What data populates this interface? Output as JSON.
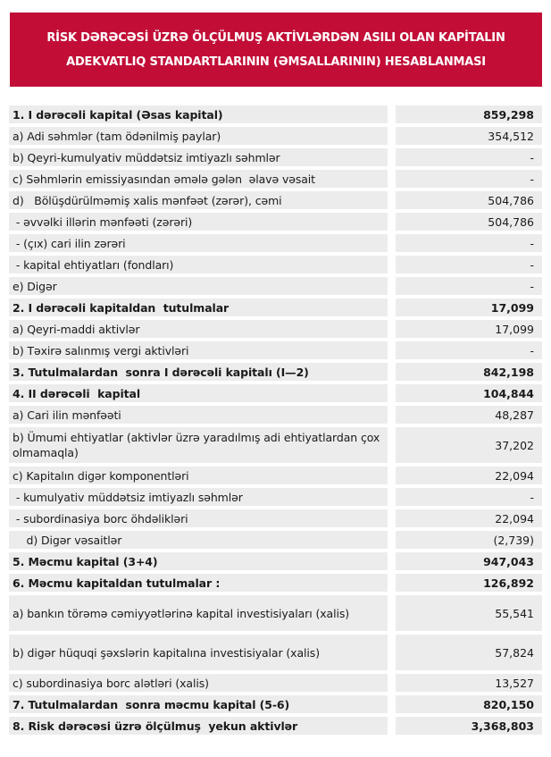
{
  "header": {
    "title_line1": "RİSK DƏRƏCƏSİ ÜZRƏ ÖLÇÜLMUŞ AKTİVLƏRDƏN ASILI OLAN KAPİTALIN",
    "title_line2": "ADEKVATLIQ STANDARTLARININ (ƏMSALLARININ) HESABLANMASI",
    "background_color": "#c20e37",
    "text_color": "#ffffff"
  },
  "table": {
    "row_background": "#ececec",
    "text_color": "#1a1a1a",
    "rows": [
      {
        "label": "1. I dərəcəli kapital (Əsas kapital)",
        "value": "859,298",
        "bold": true
      },
      {
        "label": "a) Adi səhmlər (tam ödənilmiş paylar)",
        "value": "354,512"
      },
      {
        "label": "b) Qeyri-kumulyativ müddətsiz imtiyazlı səhmlər",
        "value": "-"
      },
      {
        "label": "c) Səhmlərin emissiyasından əmələ gələn  əlavə vəsait",
        "value": "-"
      },
      {
        "label": "d)   Bölüşdürülməmiş xalis mənfəət (zərər), cəmi",
        "value": "504,786"
      },
      {
        "label": " - əvvəlki illərin mənfəəti (zərəri)",
        "value": "504,786"
      },
      {
        "label": " - (çıx) cari ilin zərəri",
        "value": "-"
      },
      {
        "label": " - kapital ehtiyatları (fondları)",
        "value": "-"
      },
      {
        "label": "e) Digər",
        "value": "-"
      },
      {
        "label": "2. I dərəcəli kapitaldan  tutulmalar",
        "value": "17,099",
        "bold": true
      },
      {
        "label": "a) Qeyri-maddi aktivlər",
        "value": "17,099"
      },
      {
        "label": "b) Təxirə salınmış vergi aktivləri",
        "value": "-"
      },
      {
        "label": "3. Tutulmalardan  sonra I dərəcəli kapitalı (I—2)",
        "value": "842,198",
        "bold": true
      },
      {
        "label": "4. II dərəcəli  kapital",
        "value": "104,844",
        "bold": true
      },
      {
        "label": "a) Cari ilin mənfəəti",
        "value": "48,287"
      },
      {
        "label": "b) Ümumi ehtiyatlar (aktivlər üzrə yaradılmış adi ehtiyatlardan çox olmamaqla)",
        "value": "37,202",
        "tall": true
      },
      {
        "label": "c) Kapitalın digər komponentləri",
        "value": "22,094"
      },
      {
        "label": " - kumulyativ müddətsiz imtiyazlı səhmlər",
        "value": "-"
      },
      {
        "label": " - subordinasiya borc öhdəlikləri",
        "value": "22,094"
      },
      {
        "label": "    d) Digər vəsaitlər",
        "value": "(2,739)"
      },
      {
        "label": "5. Məcmu kapital (3+4)",
        "value": "947,043",
        "bold": true
      },
      {
        "label": "6. Məcmu kapitaldan tutulmalar :",
        "value": "126,892",
        "bold": true
      },
      {
        "label": "a) bankın törəmə cəmiyyətlərinə kapital investisiyaları (xalis)",
        "value": "55,541",
        "tall": true
      },
      {
        "label": "b) digər hüquqi şəxslərin kapitalına investisiyalar (xalis)",
        "value": "57,824",
        "tall": true
      },
      {
        "label": "c) subordinasiya borc alətləri (xalis)",
        "value": "13,527"
      },
      {
        "label": "7. Tutulmalardan  sonra məcmu kapital (5-6)",
        "value": "820,150",
        "bold": true
      },
      {
        "label": "8. Risk dərəcəsi üzrə ölçülmuş  yekun aktivlər",
        "value": "3,368,803",
        "bold": true
      }
    ]
  }
}
